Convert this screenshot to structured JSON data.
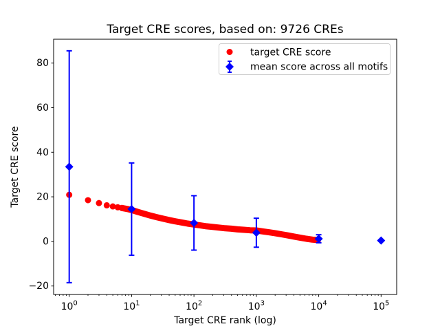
{
  "colors": {
    "target_series": "#ff0000",
    "mean_series": "#0000ff",
    "frame": "#000000",
    "text": "#000000",
    "legend_border": "#cccccc",
    "background": "#ffffff"
  },
  "chart_data": {
    "type": "scatter",
    "title": "Target CRE scores, based on: 9726 CREs",
    "xlabel": "Target CRE rank (log)",
    "ylabel": "Target CRE score",
    "x_scale": "log",
    "xlim_log10": [
      -0.25,
      5.25
    ],
    "ylim": [
      -23.8,
      90.7
    ],
    "grid": false,
    "x_tick_base": "10",
    "x_tick_exponents": [
      0,
      1,
      2,
      3,
      4,
      5
    ],
    "y_ticks": [
      -20,
      0,
      20,
      40,
      60,
      80
    ],
    "series": [
      {
        "name": "target CRE score",
        "marker": "circle",
        "color": "#ff0000",
        "solo_count": 7,
        "logx": [
          0,
          0.301,
          0.477,
          0.602,
          0.699,
          0.778,
          0.845,
          0.903,
          0.954,
          1.0,
          1.1,
          1.2,
          1.3,
          1.4,
          1.5,
          1.6,
          1.7,
          1.8,
          1.9,
          2.0,
          2.1,
          2.2,
          2.3,
          2.4,
          2.5,
          2.6,
          2.7,
          2.8,
          2.9,
          3.0,
          3.1,
          3.2,
          3.3,
          3.4,
          3.5,
          3.6,
          3.7,
          3.8,
          3.9,
          3.988
        ],
        "values": [
          20.9,
          18.5,
          17.2,
          16.2,
          15.7,
          15.3,
          15.0,
          14.7,
          14.4,
          14.1,
          13.2,
          12.4,
          11.6,
          10.9,
          10.2,
          9.6,
          9.0,
          8.5,
          8.0,
          7.6,
          7.2,
          6.8,
          6.5,
          6.2,
          5.9,
          5.7,
          5.4,
          5.2,
          5.0,
          4.9,
          4.5,
          4.1,
          3.7,
          3.2,
          2.7,
          2.2,
          1.7,
          1.2,
          0.8,
          0.6
        ]
      },
      {
        "name": "mean score across all motifs",
        "marker": "diamond",
        "color": "#0000ff",
        "x": [
          1,
          10,
          100,
          1000,
          10000,
          100000
        ],
        "y": [
          33.5,
          14.5,
          8.3,
          3.9,
          1.2,
          0.4
        ],
        "yerr": [
          52.0,
          20.7,
          12.2,
          6.5,
          1.8,
          0.4
        ]
      }
    ],
    "legend": {
      "position": "upper right",
      "entries": [
        "target CRE score",
        "mean score across all motifs"
      ]
    }
  }
}
